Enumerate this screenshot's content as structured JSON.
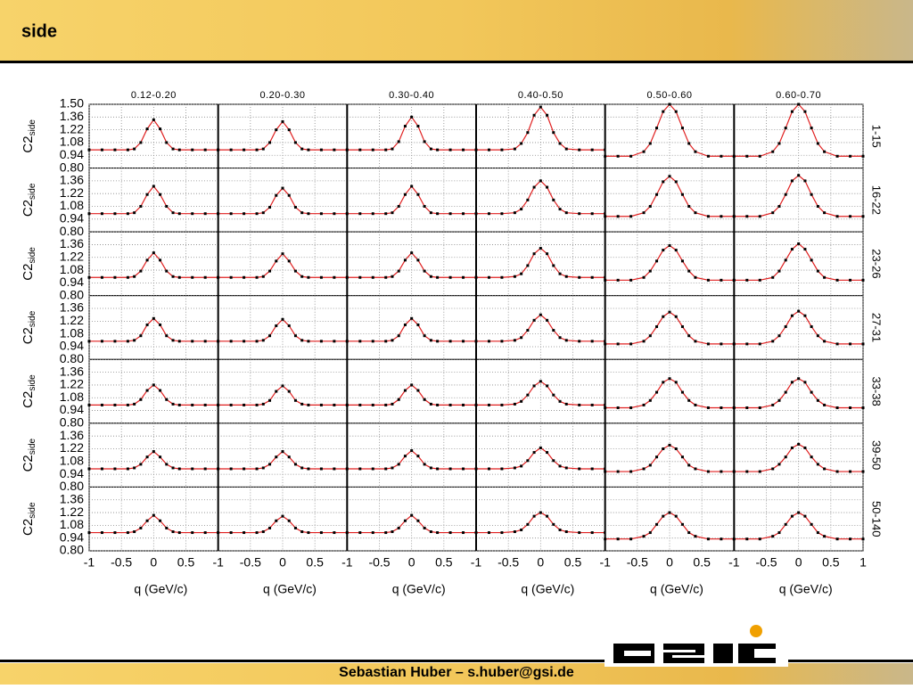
{
  "header": {
    "title": "side"
  },
  "footer": {
    "text": "Sebastian Huber – s.huber@gsi.de"
  },
  "chart_data": {
    "type": "line",
    "columns": [
      "0.12-0.20",
      "0.20-0.30",
      "0.30-0.40",
      "0.40-0.50",
      "0.50-0.60",
      "0.60-0.70"
    ],
    "rows": [
      "1-15",
      "16-22",
      "23-26",
      "27-31",
      "33-38",
      "39-50",
      "50-140"
    ],
    "xlabel": "q (GeV/c)",
    "ylabel": "C2",
    "ylabel_sub": "side",
    "x": [
      -1,
      -0.8,
      -0.6,
      -0.4,
      -0.3,
      -0.2,
      -0.1,
      0,
      0.1,
      0.2,
      0.3,
      0.4,
      0.6,
      0.8,
      1
    ],
    "xlim": [
      -1,
      1
    ],
    "xticks": [
      -1,
      -0.5,
      0,
      0.5,
      1
    ],
    "ylim": [
      0.8,
      1.5
    ],
    "yticks": [
      {
        "value": 0.8,
        "label": "0.80"
      },
      0.94,
      1.08,
      1.22,
      1.36,
      {
        "value": 1.5,
        "label": "1.50"
      }
    ],
    "grid": true,
    "line_color": "#e02020",
    "marker_color": "#000000",
    "panels": [
      [
        [
          1,
          1,
          1,
          1,
          1.01,
          1.08,
          1.23,
          1.33,
          1.23,
          1.08,
          1.01,
          1,
          1,
          1,
          1
        ],
        [
          1,
          1,
          1,
          1,
          1.01,
          1.08,
          1.22,
          1.31,
          1.22,
          1.08,
          1.01,
          1,
          1,
          1,
          1
        ],
        [
          1,
          1,
          1,
          1,
          1.01,
          1.09,
          1.26,
          1.36,
          1.26,
          1.09,
          1.01,
          1,
          1,
          1,
          1
        ],
        [
          1,
          1,
          1,
          1.01,
          1.07,
          1.19,
          1.38,
          1.47,
          1.38,
          1.19,
          1.07,
          1.01,
          1,
          1,
          1
        ],
        [
          0.93,
          0.93,
          0.93,
          0.98,
          1.07,
          1.24,
          1.42,
          1.5,
          1.42,
          1.24,
          1.07,
          0.98,
          0.93,
          0.93,
          0.93
        ],
        [
          0.93,
          0.93,
          0.93,
          0.98,
          1.07,
          1.24,
          1.42,
          1.5,
          1.42,
          1.24,
          1.07,
          0.98,
          0.93,
          0.93,
          0.93
        ]
      ],
      [
        [
          1,
          1,
          1,
          1,
          1.01,
          1.08,
          1.21,
          1.3,
          1.21,
          1.08,
          1.01,
          1,
          1,
          1,
          1
        ],
        [
          1,
          1,
          1,
          1,
          1.01,
          1.07,
          1.2,
          1.28,
          1.2,
          1.07,
          1.01,
          1,
          1,
          1,
          1
        ],
        [
          1,
          1,
          1,
          1,
          1.01,
          1.08,
          1.21,
          1.3,
          1.21,
          1.08,
          1.01,
          1,
          1,
          1,
          1
        ],
        [
          1,
          1,
          1,
          1.01,
          1.05,
          1.15,
          1.29,
          1.36,
          1.29,
          1.15,
          1.05,
          1.01,
          1,
          1,
          1
        ],
        [
          0.97,
          0.97,
          0.97,
          1.01,
          1.08,
          1.21,
          1.35,
          1.41,
          1.35,
          1.21,
          1.08,
          1.01,
          0.97,
          0.97,
          0.97
        ],
        [
          0.97,
          0.97,
          0.97,
          1.01,
          1.08,
          1.21,
          1.36,
          1.42,
          1.36,
          1.21,
          1.08,
          1.01,
          0.97,
          0.97,
          0.97
        ]
      ],
      [
        [
          1,
          1,
          1,
          1,
          1.01,
          1.07,
          1.19,
          1.27,
          1.19,
          1.07,
          1.01,
          1,
          1,
          1,
          1
        ],
        [
          1,
          1,
          1,
          1,
          1.01,
          1.07,
          1.18,
          1.26,
          1.18,
          1.07,
          1.01,
          1,
          1,
          1,
          1
        ],
        [
          1,
          1,
          1,
          1,
          1.01,
          1.07,
          1.19,
          1.27,
          1.19,
          1.07,
          1.01,
          1,
          1,
          1,
          1
        ],
        [
          1,
          1,
          1,
          1.01,
          1.04,
          1.13,
          1.26,
          1.32,
          1.26,
          1.13,
          1.04,
          1.01,
          1,
          1,
          1
        ],
        [
          0.97,
          0.97,
          0.97,
          1,
          1.07,
          1.18,
          1.3,
          1.35,
          1.3,
          1.18,
          1.07,
          1,
          0.97,
          0.97,
          0.97
        ],
        [
          0.97,
          0.97,
          0.97,
          1,
          1.07,
          1.19,
          1.31,
          1.37,
          1.31,
          1.19,
          1.07,
          1,
          0.97,
          0.97,
          0.97
        ]
      ],
      [
        [
          1,
          1,
          1,
          1,
          1.01,
          1.06,
          1.18,
          1.25,
          1.18,
          1.06,
          1.01,
          1,
          1,
          1,
          1
        ],
        [
          1,
          1,
          1,
          1,
          1.01,
          1.06,
          1.17,
          1.24,
          1.17,
          1.06,
          1.01,
          1,
          1,
          1,
          1
        ],
        [
          1,
          1,
          1,
          1,
          1.01,
          1.06,
          1.18,
          1.25,
          1.18,
          1.06,
          1.01,
          1,
          1,
          1,
          1
        ],
        [
          1,
          1,
          1,
          1.01,
          1.04,
          1.12,
          1.23,
          1.29,
          1.23,
          1.12,
          1.04,
          1.01,
          1,
          1,
          1
        ],
        [
          0.97,
          0.97,
          0.97,
          1,
          1.06,
          1.16,
          1.27,
          1.32,
          1.27,
          1.16,
          1.06,
          1,
          0.97,
          0.97,
          0.97
        ],
        [
          0.97,
          0.97,
          0.97,
          1,
          1.06,
          1.16,
          1.28,
          1.33,
          1.28,
          1.16,
          1.06,
          1,
          0.97,
          0.97,
          0.97
        ]
      ],
      [
        [
          1,
          1,
          1,
          1,
          1.01,
          1.06,
          1.16,
          1.22,
          1.16,
          1.06,
          1.01,
          1,
          1,
          1,
          1
        ],
        [
          1,
          1,
          1,
          1,
          1.01,
          1.05,
          1.15,
          1.21,
          1.15,
          1.05,
          1.01,
          1,
          1,
          1,
          1
        ],
        [
          1,
          1,
          1,
          1,
          1.01,
          1.06,
          1.16,
          1.22,
          1.16,
          1.06,
          1.01,
          1,
          1,
          1,
          1
        ],
        [
          1,
          1,
          1,
          1.01,
          1.04,
          1.11,
          1.21,
          1.26,
          1.21,
          1.11,
          1.04,
          1.01,
          1,
          1,
          1
        ],
        [
          0.97,
          0.97,
          0.97,
          1,
          1.05,
          1.14,
          1.25,
          1.29,
          1.25,
          1.14,
          1.05,
          1,
          0.97,
          0.97,
          0.97
        ],
        [
          0.97,
          0.97,
          0.97,
          1,
          1.05,
          1.14,
          1.25,
          1.29,
          1.25,
          1.14,
          1.05,
          1,
          0.97,
          0.97,
          0.97
        ]
      ],
      [
        [
          1,
          1,
          1,
          1,
          1.01,
          1.05,
          1.13,
          1.19,
          1.13,
          1.05,
          1.01,
          1,
          1,
          1,
          1
        ],
        [
          1,
          1,
          1,
          1,
          1.01,
          1.05,
          1.13,
          1.19,
          1.13,
          1.05,
          1.01,
          1,
          1,
          1,
          1
        ],
        [
          1,
          1,
          1,
          1,
          1.01,
          1.05,
          1.14,
          1.2,
          1.14,
          1.05,
          1.01,
          1,
          1,
          1,
          1
        ],
        [
          1,
          1,
          1,
          1.01,
          1.03,
          1.09,
          1.18,
          1.23,
          1.18,
          1.09,
          1.03,
          1.01,
          1,
          1,
          1
        ],
        [
          0.97,
          0.97,
          0.97,
          1,
          1.04,
          1.13,
          1.22,
          1.26,
          1.22,
          1.13,
          1.04,
          1,
          0.97,
          0.97,
          0.97
        ],
        [
          0.97,
          0.97,
          0.97,
          1,
          1.05,
          1.13,
          1.23,
          1.27,
          1.23,
          1.13,
          1.05,
          1,
          0.97,
          0.97,
          0.97
        ]
      ],
      [
        [
          1,
          1,
          1,
          1,
          1.01,
          1.05,
          1.13,
          1.19,
          1.13,
          1.05,
          1.01,
          1,
          1,
          1,
          1
        ],
        [
          1,
          1,
          1,
          1,
          1.01,
          1.05,
          1.13,
          1.18,
          1.13,
          1.05,
          1.01,
          1,
          1,
          1,
          1
        ],
        [
          1,
          1,
          1,
          1,
          1.01,
          1.05,
          1.13,
          1.19,
          1.13,
          1.05,
          1.01,
          1,
          1,
          1,
          1
        ],
        [
          1,
          1,
          1,
          1.01,
          1.03,
          1.09,
          1.18,
          1.22,
          1.18,
          1.09,
          1.03,
          1.01,
          1,
          1,
          1
        ],
        [
          0.93,
          0.93,
          0.93,
          0.96,
          1,
          1.09,
          1.18,
          1.22,
          1.18,
          1.09,
          1,
          0.96,
          0.93,
          0.93,
          0.93
        ],
        [
          0.93,
          0.93,
          0.93,
          0.96,
          1,
          1.09,
          1.18,
          1.22,
          1.18,
          1.09,
          1,
          0.96,
          0.93,
          0.93,
          0.93
        ]
      ]
    ]
  }
}
